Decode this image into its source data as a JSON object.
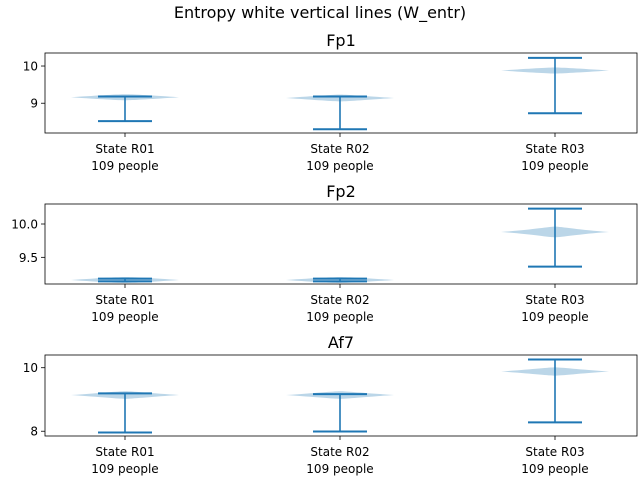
{
  "figure": {
    "suptitle": "Entropy white vertical lines (W_entr)"
  },
  "colors": {
    "violin_fill": "#1f77b4",
    "line": "#1f77b4",
    "axes": "#000000"
  },
  "chart_data": [
    {
      "type": "violin",
      "title": "Fp1",
      "categories": [
        "State R01\n109 people",
        "State R02\n109 people",
        "State R03\n109 people"
      ],
      "ylim": [
        8.2,
        10.35
      ],
      "yticks": [
        9,
        10
      ],
      "ytick_labels": [
        "9",
        "10"
      ],
      "violins": [
        {
          "min": 8.52,
          "max": 9.18,
          "center": 9.16,
          "spread": 9.09
        },
        {
          "min": 8.3,
          "max": 9.18,
          "center": 9.14,
          "spread": 9.05
        },
        {
          "min": 8.73,
          "max": 10.22,
          "center": 9.88,
          "spread": 9.95
        }
      ]
    },
    {
      "type": "violin",
      "title": "Fp2",
      "categories": [
        "State R01\n109 people",
        "State R02\n109 people",
        "State R03\n109 people"
      ],
      "ylim": [
        9.1,
        10.3
      ],
      "yticks": [
        9.5,
        10.0
      ],
      "ytick_labels": [
        "9.5",
        "10.0"
      ],
      "violins": [
        {
          "min": 9.14,
          "max": 9.18,
          "center": 9.16,
          "spread": 9.17
        },
        {
          "min": 9.14,
          "max": 9.18,
          "center": 9.16,
          "spread": 9.17
        },
        {
          "min": 9.36,
          "max": 10.23,
          "center": 9.88,
          "spread": 9.8
        }
      ]
    },
    {
      "type": "violin",
      "title": "Af7",
      "categories": [
        "State R01\n109 people",
        "State R02\n109 people",
        "State R03\n109 people"
      ],
      "ylim": [
        7.85,
        10.4
      ],
      "yticks": [
        8,
        10
      ],
      "ytick_labels": [
        "8",
        "10"
      ],
      "violins": [
        {
          "min": 7.96,
          "max": 9.19,
          "center": 9.14,
          "spread": 9.02
        },
        {
          "min": 7.99,
          "max": 9.17,
          "center": 9.14,
          "spread": 9.02
        },
        {
          "min": 8.28,
          "max": 10.26,
          "center": 9.88,
          "spread": 9.75
        }
      ]
    }
  ]
}
